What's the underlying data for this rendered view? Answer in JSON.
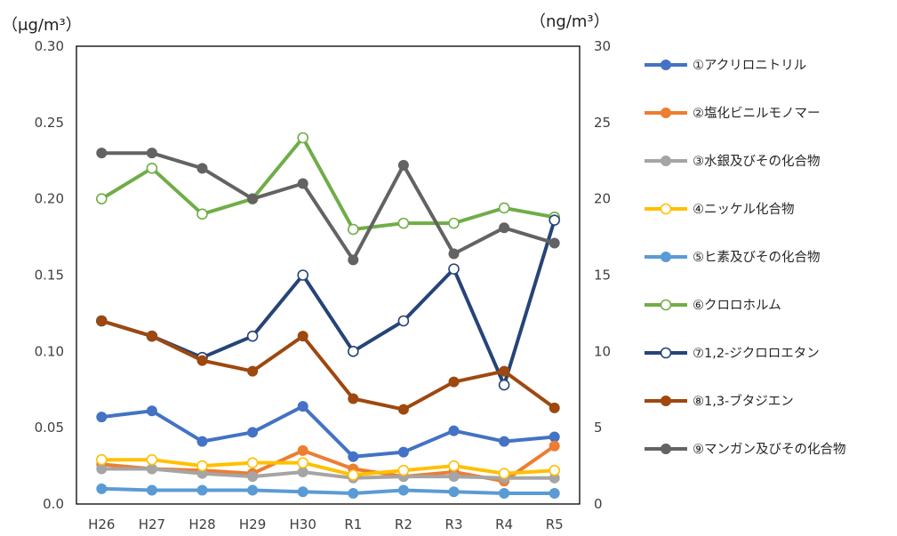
{
  "chart_data": {
    "type": "line",
    "categories": [
      "H26",
      "H27",
      "H28",
      "H29",
      "H30",
      "R1",
      "R2",
      "R3",
      "R4",
      "R5"
    ],
    "left_axis": {
      "unit_label": "（μg/m³）",
      "ylim": [
        0,
        0.3
      ],
      "ticks": [
        "0.0",
        "0.05",
        "0.10",
        "0.15",
        "0.20",
        "0.25",
        "0.30"
      ]
    },
    "right_axis": {
      "unit_label": "（ng/m³）",
      "ylim": [
        0,
        30
      ],
      "ticks": [
        "0",
        "5",
        "10",
        "15",
        "20",
        "25",
        "30"
      ]
    },
    "grid": false,
    "legend_position": "right",
    "series": [
      {
        "name": "①アクリロニトリル",
        "axis": "left",
        "color": "#4472C4",
        "marker": "filled",
        "values": [
          0.057,
          0.061,
          0.041,
          0.047,
          0.064,
          0.031,
          0.034,
          0.048,
          0.041,
          0.044
        ]
      },
      {
        "name": "②塩化ビニルモノマー",
        "axis": "left",
        "color": "#ED7D31",
        "marker": "filled",
        "values": [
          0.026,
          0.023,
          0.022,
          0.02,
          0.035,
          0.023,
          0.018,
          0.021,
          0.015,
          0.038
        ]
      },
      {
        "name": "③水銀及びその化合物",
        "axis": "right",
        "color": "#A5A5A5",
        "marker": "filled",
        "values": [
          2.3,
          2.3,
          2.0,
          1.8,
          2.1,
          1.7,
          1.8,
          1.8,
          1.7,
          1.7
        ]
      },
      {
        "name": "④ニッケル化合物",
        "axis": "right",
        "color": "#FFC000",
        "marker": "open",
        "values": [
          2.9,
          2.9,
          2.5,
          2.7,
          2.7,
          1.9,
          2.2,
          2.5,
          2.0,
          2.2
        ]
      },
      {
        "name": "⑤ヒ素及びその化合物",
        "axis": "right",
        "color": "#5B9BD5",
        "marker": "filled",
        "values": [
          1.0,
          0.9,
          0.9,
          0.9,
          0.8,
          0.7,
          0.9,
          0.8,
          0.7,
          0.7
        ]
      },
      {
        "name": "⑥クロロホルム",
        "axis": "left",
        "color": "#70AD47",
        "marker": "open",
        "values": [
          0.2,
          0.22,
          0.19,
          0.2,
          0.24,
          0.18,
          0.184,
          0.184,
          0.194,
          0.188
        ]
      },
      {
        "name": "⑦1,2-ジクロロエタン",
        "axis": "left",
        "color": "#264478",
        "marker": "open",
        "values": [
          0.12,
          0.11,
          0.096,
          0.11,
          0.15,
          0.1,
          0.12,
          0.154,
          0.078,
          0.186
        ]
      },
      {
        "name": "⑧1,3-ブタジエン",
        "axis": "left",
        "color": "#9E480E",
        "marker": "filled",
        "values": [
          0.12,
          0.11,
          0.094,
          0.087,
          0.11,
          0.069,
          0.062,
          0.08,
          0.087,
          0.063
        ]
      },
      {
        "name": "⑨マンガン及びその化合物",
        "axis": "right",
        "color": "#636363",
        "marker": "filled",
        "values": [
          23,
          23,
          22,
          20,
          21,
          16,
          22.2,
          16.4,
          18.1,
          17.1
        ]
      }
    ]
  }
}
